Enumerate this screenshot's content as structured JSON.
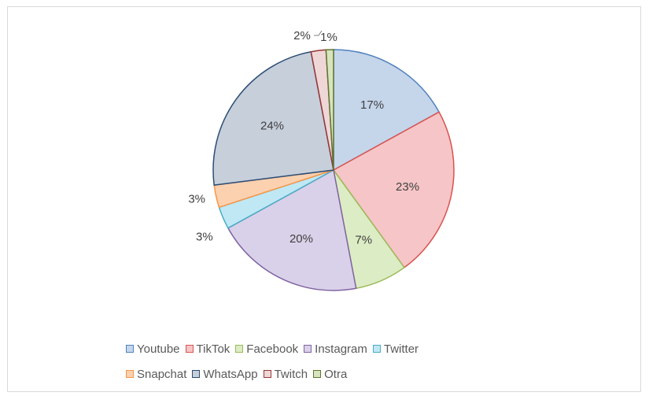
{
  "chart_data": {
    "type": "pie",
    "title": "",
    "legend_position": "bottom",
    "slices": [
      {
        "name": "Youtube",
        "value": 17,
        "label": "17%",
        "color": "#c5d5ea",
        "edge": "#4f81bd"
      },
      {
        "name": "TikTok",
        "value": 23,
        "label": "23%",
        "color": "#f6c5c7",
        "edge": "#d9534f"
      },
      {
        "name": "Facebook",
        "value": 7,
        "label": "7%",
        "color": "#dcecc4",
        "edge": "#9bbb59"
      },
      {
        "name": "Instagram",
        "value": 20,
        "label": "20%",
        "color": "#d9d1e9",
        "edge": "#8064a2"
      },
      {
        "name": "Twitter",
        "value": 3,
        "label": "3%",
        "color": "#bfe8f4",
        "edge": "#4bacc6"
      },
      {
        "name": "Snapchat",
        "value": 3,
        "label": "3%",
        "color": "#fcd1b0",
        "edge": "#f79646"
      },
      {
        "name": "WhatsApp",
        "value": 24,
        "label": "24%",
        "color": "#c7cfdb",
        "edge": "#2c4d75"
      },
      {
        "name": "Twitch",
        "value": 2,
        "label": "2%",
        "color": "#efd7d8",
        "edge": "#953735"
      },
      {
        "name": "Otra",
        "value": 1,
        "label": "1%",
        "color": "#d7e4bd",
        "edge": "#5f7530"
      }
    ]
  }
}
